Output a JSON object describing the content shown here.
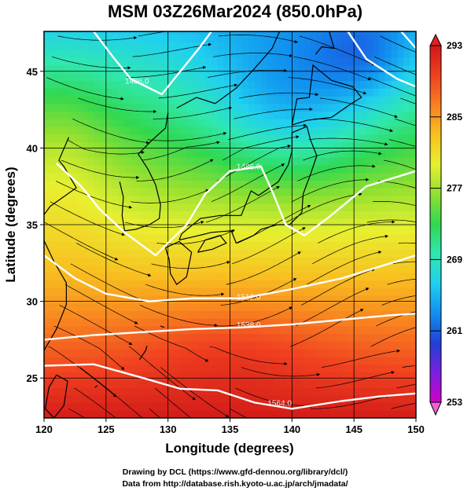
{
  "title": "MSM 03Z26Mar2024 (850.0hPa)",
  "credits": {
    "line1": "Drawing by DCL (https://www.gfd-dennou.org/library/dcl/)",
    "line2": "Data from http://database.rish.kyoto-u.ac.jp/arch/jmadata/"
  },
  "chart_data": {
    "type": "heatmap",
    "xlabel": "Longitude (degrees)",
    "ylabel": "Latitude  (degrees)",
    "xlim": [
      120,
      150
    ],
    "ylim": [
      22.4,
      47.6
    ],
    "x_ticks": [
      "120",
      "125",
      "130",
      "135",
      "140",
      "145",
      "150"
    ],
    "x_tick_values": [
      120,
      125,
      130,
      135,
      140,
      145,
      150
    ],
    "y_ticks": [
      "25",
      "30",
      "35",
      "40",
      "45"
    ],
    "y_tick_values": [
      25,
      30,
      35,
      40,
      45
    ],
    "grid": true,
    "colorbar": {
      "min": 253,
      "max": 293,
      "tick_labels": [
        "293",
        "285",
        "277",
        "269",
        "261",
        "253"
      ],
      "tick_values": [
        293,
        285,
        277,
        269,
        261,
        253
      ],
      "colors": [
        "#d000c8",
        "#7a20e0",
        "#2040d8",
        "#1090f0",
        "#20d0f0",
        "#30e8b0",
        "#30d850",
        "#90e030",
        "#e8f030",
        "#f8c020",
        "#f88020",
        "#f04020",
        "#d01818"
      ]
    },
    "contour_labels": [
      {
        "text": "1486.0",
        "lon": 127.5,
        "lat": 44.2
      },
      {
        "text": "1486.0",
        "lon": 136.5,
        "lat": 38.6
      },
      {
        "text": "1512.0",
        "lon": 136.5,
        "lat": 30.1
      },
      {
        "text": "1538.0",
        "lon": 136.5,
        "lat": 28.3
      },
      {
        "text": "1564.0",
        "lon": 139.0,
        "lat": 23.2
      }
    ],
    "overlays": [
      "streamlines",
      "coastlines",
      "geopotential height contours"
    ]
  }
}
